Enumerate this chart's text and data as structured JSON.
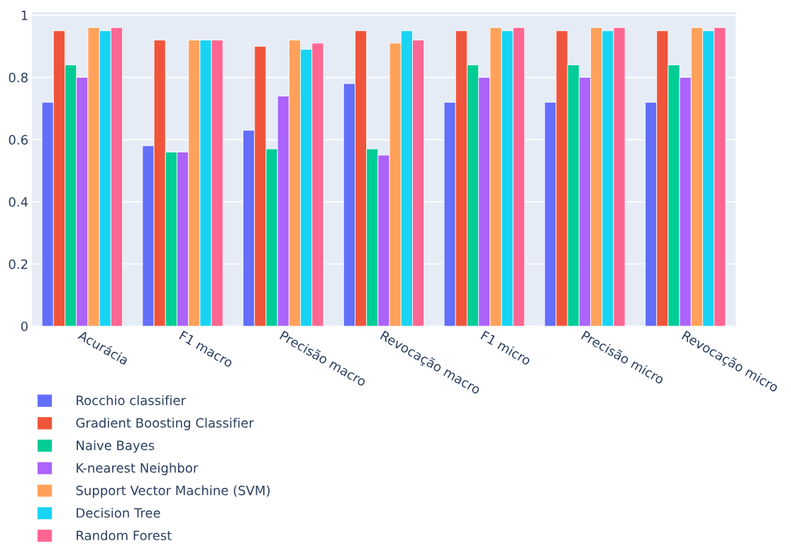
{
  "chart_data": {
    "type": "bar",
    "categories": [
      "Acurácia",
      "F1 macro",
      "Precisão macro",
      "Revocação macro",
      "F1 micro",
      "Precisão micro",
      "Revocação micro"
    ],
    "series": [
      {
        "name": "Rocchio classifier",
        "color": "#636efa",
        "values": [
          0.72,
          0.58,
          0.63,
          0.78,
          0.72,
          0.72,
          0.72
        ]
      },
      {
        "name": "Gradient Boosting Classifier",
        "color": "#ef553b",
        "values": [
          0.95,
          0.92,
          0.9,
          0.95,
          0.95,
          0.95,
          0.95
        ]
      },
      {
        "name": "Naive Bayes",
        "color": "#00cc96",
        "values": [
          0.84,
          0.56,
          0.57,
          0.57,
          0.84,
          0.84,
          0.84
        ]
      },
      {
        "name": "K-nearest Neighbor",
        "color": "#ab63fa",
        "values": [
          0.8,
          0.56,
          0.74,
          0.55,
          0.8,
          0.8,
          0.8
        ]
      },
      {
        "name": "Support Vector Machine (SVM)",
        "color": "#ffa15a",
        "values": [
          0.96,
          0.92,
          0.92,
          0.91,
          0.96,
          0.96,
          0.96
        ]
      },
      {
        "name": "Decision Tree",
        "color": "#19d3f3",
        "values": [
          0.95,
          0.92,
          0.89,
          0.95,
          0.95,
          0.95,
          0.95
        ]
      },
      {
        "name": "Random Forest",
        "color": "#ff6692",
        "values": [
          0.96,
          0.92,
          0.91,
          0.92,
          0.96,
          0.96,
          0.96
        ]
      }
    ],
    "ylim": [
      0,
      1.01
    ],
    "yticks": [
      0,
      0.2,
      0.4,
      0.6,
      0.8,
      1
    ],
    "grid": "y",
    "legend": "bottom"
  }
}
